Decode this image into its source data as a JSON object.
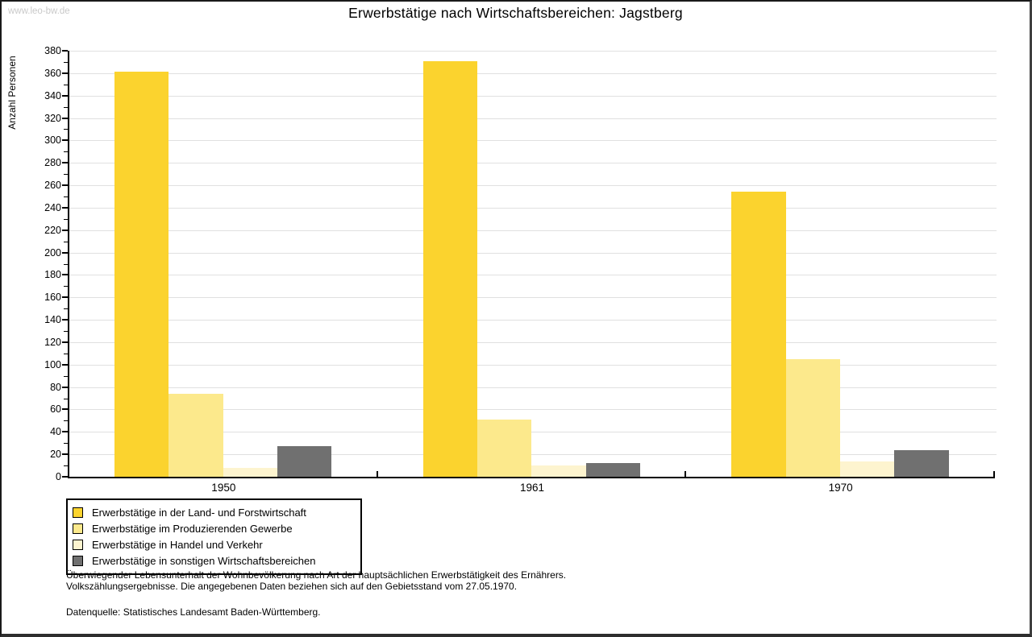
{
  "watermark": "www.leo-bw.de",
  "title": "Erwerbstätige nach Wirtschaftsbereichen: Jagstberg",
  "chart_data": {
    "type": "bar",
    "title": "Erwerbstätige nach Wirtschaftsbereichen: Jagstberg",
    "categories": [
      "1950",
      "1961",
      "1970"
    ],
    "series": [
      {
        "name": "Erwerbstätige in der Land- und Forstwirtschaft",
        "color": "#fbd32e",
        "values": [
          361,
          371,
          254
        ]
      },
      {
        "name": "Erwerbstätige im Produzierenden Gewerbe",
        "color": "#fce98c",
        "values": [
          74,
          51,
          105
        ]
      },
      {
        "name": "Erwerbstätige in Handel und Verkehr",
        "color": "#fdf4cf",
        "values": [
          8,
          10,
          14
        ]
      },
      {
        "name": "Erwerbstätige in sonstigen Wirtschaftsbereichen",
        "color": "#707070",
        "values": [
          27,
          12,
          24
        ]
      }
    ],
    "xlabel": "",
    "ylabel": "Anzahl Personen",
    "ylim": [
      0,
      380
    ],
    "ytick_step": 20,
    "minor_tick_step": 10,
    "grid": true,
    "legend_position": "bottom-left",
    "gridline_color": "#e0e0e0"
  },
  "footnote_line1": "Überwiegender Lebensunterhalt der Wohnbevölkerung nach Art der hauptsächlichen Erwerbstätigkeit des Ernährers.",
  "footnote_line2": "Volkszählungsergebnisse. Die angegebenen Daten beziehen sich auf den Gebietsstand vom 27.05.1970.",
  "source_line": "Datenquelle: Statistisches Landesamt Baden-Württemberg."
}
